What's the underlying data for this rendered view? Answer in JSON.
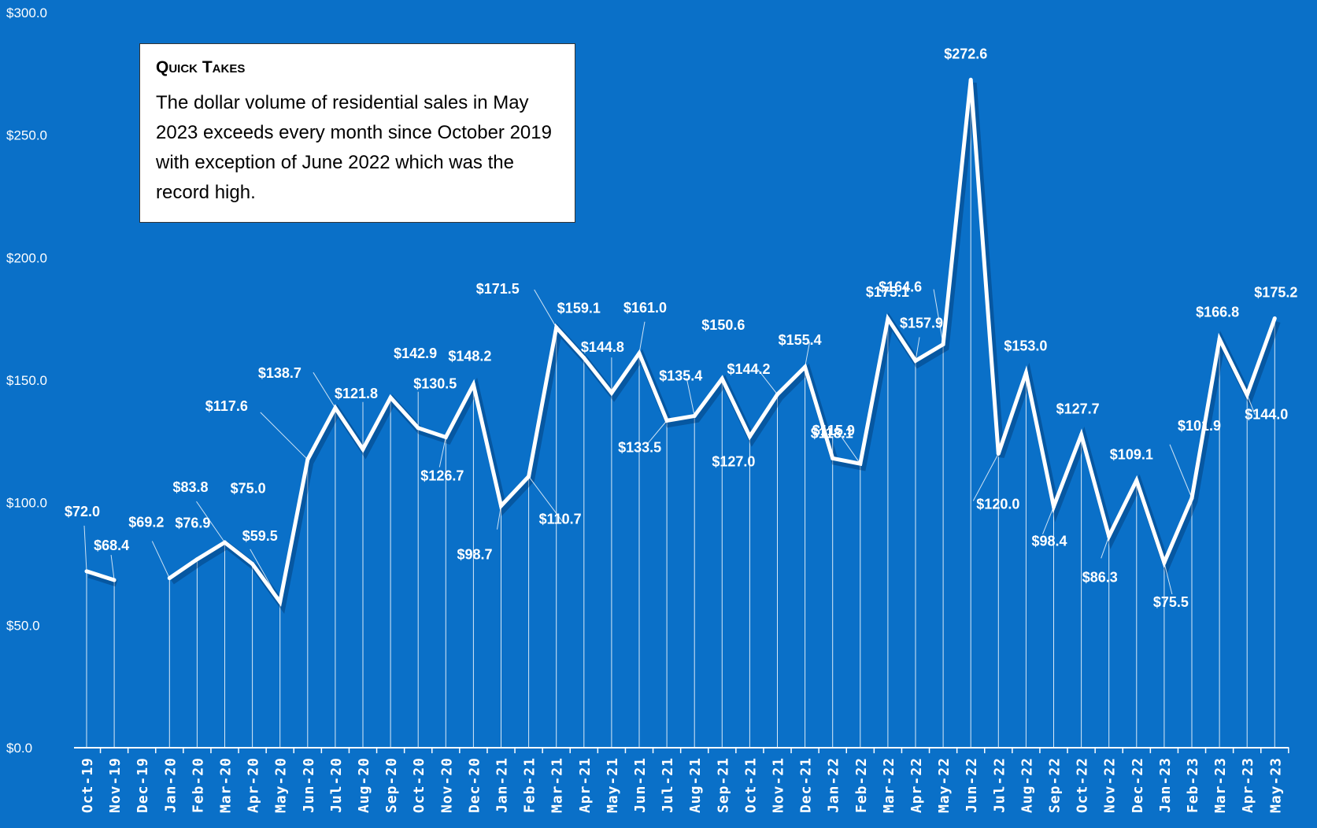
{
  "quick_takes": {
    "title": "Quick Takes",
    "body": "The dollar volume of residential sales in May 2023 exceeds every month since October 2019 with exception of June 2022 which was the record high."
  },
  "colors": {
    "background": "#0A70C8",
    "line": "#ffffff",
    "text": "#ffffff",
    "box": "#ffffff"
  },
  "chart_data": {
    "type": "line",
    "title": "",
    "xlabel": "",
    "ylabel": "",
    "ylim": [
      0,
      300
    ],
    "yticks": [
      0,
      50,
      100,
      150,
      200,
      250,
      300
    ],
    "ytick_labels": [
      "$0.0",
      "$50.0",
      "$100.0",
      "$150.0",
      "$200.0",
      "$250.0",
      "$300.0"
    ],
    "categories": [
      "Oct-19",
      "Nov-19",
      "Dec-19",
      "Jan-20",
      "Feb-20",
      "Mar-20",
      "Apr-20",
      "May-20",
      "Jun-20",
      "Jul-20",
      "Aug-20",
      "Sep-20",
      "Oct-20",
      "Nov-20",
      "Dec-20",
      "Jan-21",
      "Feb-21",
      "Mar-21",
      "Apr-21",
      "May-21",
      "Jun-21",
      "Jul-21",
      "Aug-21",
      "Sep-21",
      "Oct-21",
      "Nov-21",
      "Dec-21",
      "Jan-22",
      "Feb-22",
      "Mar-22",
      "Apr-22",
      "May-22",
      "Jun-22",
      "Jul-22",
      "Aug-22",
      "Sep-22",
      "Oct-22",
      "Nov-22",
      "Dec-22",
      "Jan-23",
      "Feb-23",
      "Mar-23",
      "Apr-23",
      "May-23"
    ],
    "series": [
      {
        "values": [
          72.0,
          68.4,
          null,
          69.2,
          76.9,
          83.8,
          75.0,
          59.5,
          117.6,
          138.7,
          121.8,
          142.9,
          130.5,
          126.7,
          148.2,
          98.7,
          110.7,
          171.5,
          159.1,
          144.8,
          161.0,
          133.5,
          135.4,
          150.6,
          127.0,
          144.2,
          155.4,
          118.1,
          115.9,
          175.1,
          157.9,
          164.6,
          272.6,
          120.0,
          153.0,
          98.4,
          127.7,
          86.3,
          109.1,
          75.5,
          101.9,
          166.8,
          144.0,
          175.2
        ],
        "labels": [
          "$72.0",
          "$68.4",
          "",
          "$69.2",
          "$76.9",
          "$83.8",
          "$75.0",
          "$59.5",
          "$117.6",
          "$138.7",
          "$121.8",
          "$142.9",
          "$130.5",
          "$126.7",
          "$148.2",
          "$98.7",
          "$110.7",
          "$171.5",
          "$159.1",
          "$144.8",
          "$161.0",
          "$133.5",
          "$135.4",
          "$150.6",
          "$127.0",
          "$144.2",
          "$155.4",
          "$118.1",
          "$115.9",
          "$175.1",
          "$157.9",
          "$164.6",
          "$272.6",
          "$120.0",
          "$153.0",
          "$98.4",
          "$127.7",
          "$86.3",
          "$109.1",
          "$75.5",
          "$101.9",
          "$166.8",
          "$144.0",
          "$175.2"
        ]
      }
    ],
    "grid": false,
    "drop_lines": true
  }
}
